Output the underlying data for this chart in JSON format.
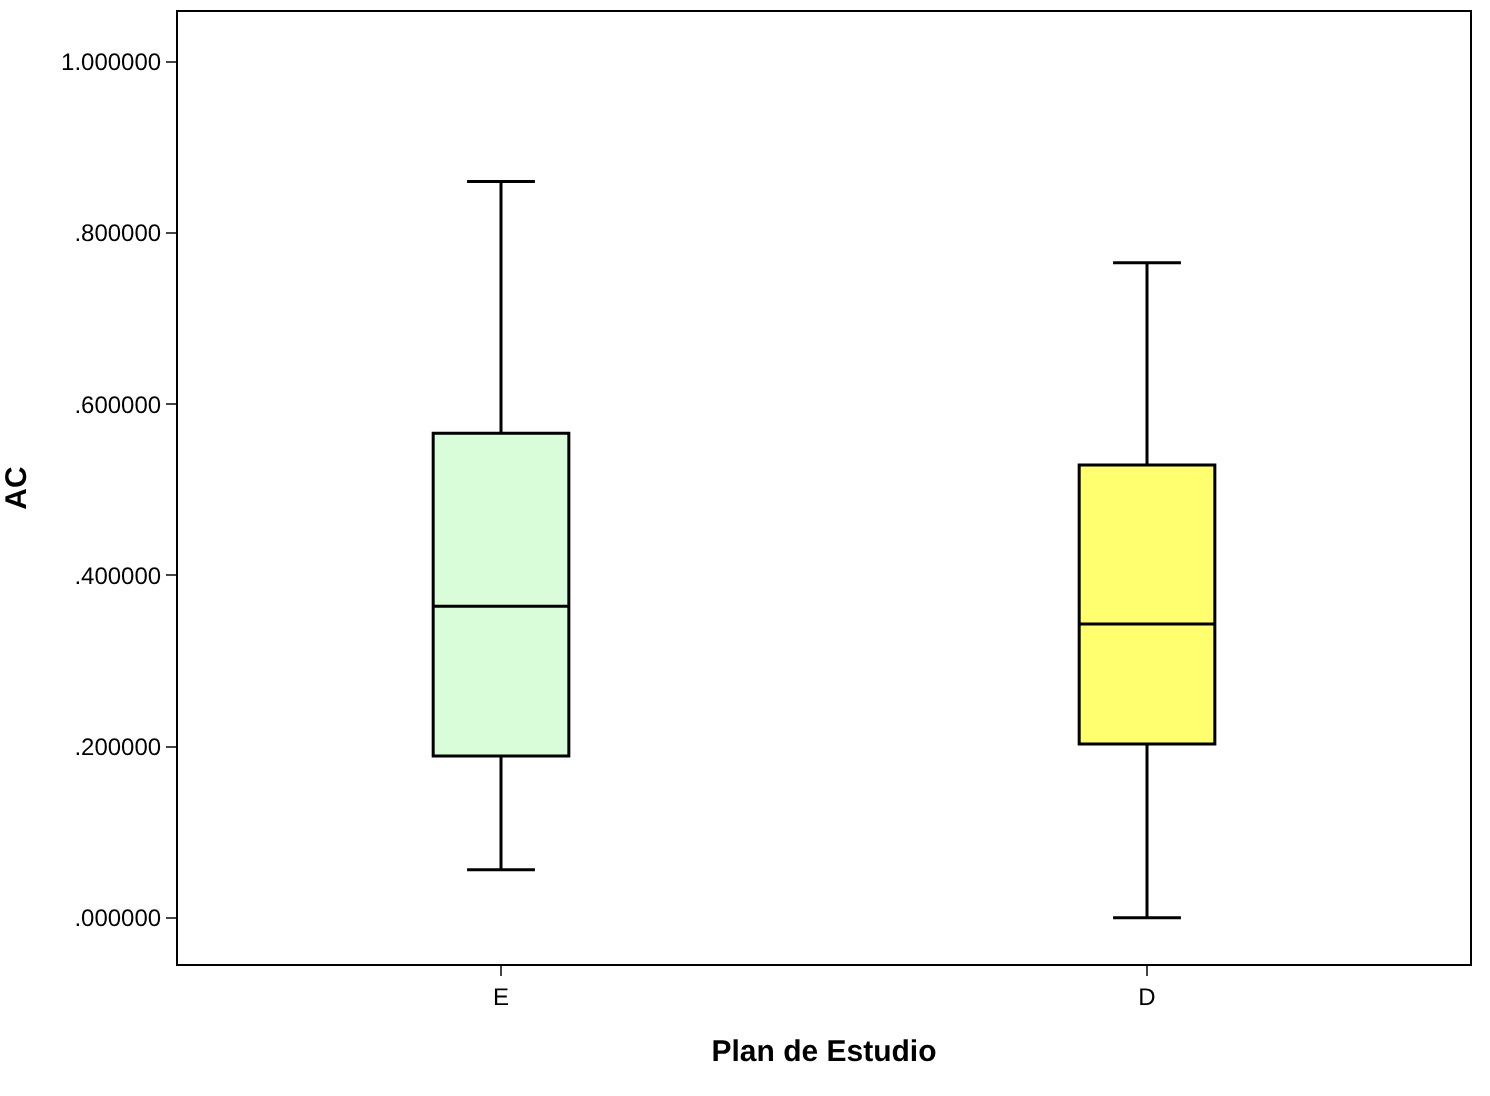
{
  "chart_data": {
    "type": "box",
    "xlabel": "Plan de Estudio",
    "ylabel": "AC",
    "categories": [
      "E",
      "D"
    ],
    "series": [
      {
        "color": "#d9fcd9",
        "boxes": [
          {
            "low": 0.056,
            "q1": 0.189,
            "median": 0.364,
            "q3": 0.566,
            "high": 0.86
          },
          null
        ]
      },
      {
        "color": "#ffff70",
        "boxes": [
          null,
          {
            "low": 0.0,
            "q1": 0.203,
            "median": 0.343,
            "q3": 0.529,
            "high": 0.765
          }
        ]
      }
    ],
    "ylim": [
      -0.054,
      1.058
    ],
    "yticks": [
      {
        "value": 0,
        "label": ".000000"
      },
      {
        "value": 0.2,
        "label": ".200000"
      },
      {
        "value": 0.4,
        "label": ".400000"
      },
      {
        "value": 0.6,
        "label": ".600000"
      },
      {
        "value": 0.8,
        "label": ".800000"
      },
      {
        "value": 1.0,
        "label": "1.000000"
      }
    ]
  }
}
